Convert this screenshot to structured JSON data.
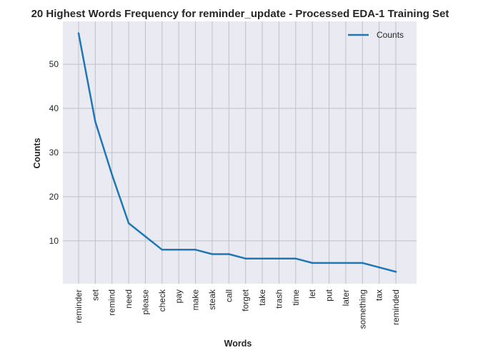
{
  "chart_data": {
    "type": "line",
    "title": "20 Highest Words Frequency for reminder_update - Processed EDA-1 Training Set",
    "xlabel": "Words",
    "ylabel": "Counts",
    "categories": [
      "reminder",
      "set",
      "remind",
      "need",
      "please",
      "check",
      "pay",
      "make",
      "steak",
      "call",
      "forget",
      "take",
      "trash",
      "time",
      "let",
      "put",
      "later",
      "something",
      "tax",
      "reminded"
    ],
    "series": [
      {
        "name": "Counts",
        "color": "#1f77b4",
        "values": [
          57,
          37,
          25,
          14,
          11,
          8,
          8,
          8,
          7,
          7,
          6,
          6,
          6,
          6,
          5,
          5,
          5,
          5,
          4,
          3
        ]
      }
    ],
    "ylim": [
      0.3,
      59.7
    ],
    "yticks": [
      10,
      20,
      30,
      40,
      50
    ],
    "grid": true,
    "legend": "top-right",
    "colors": {
      "plot_background": "#eaeaf2",
      "grid": "#c0c0c6",
      "line": "#1f77b4"
    }
  }
}
